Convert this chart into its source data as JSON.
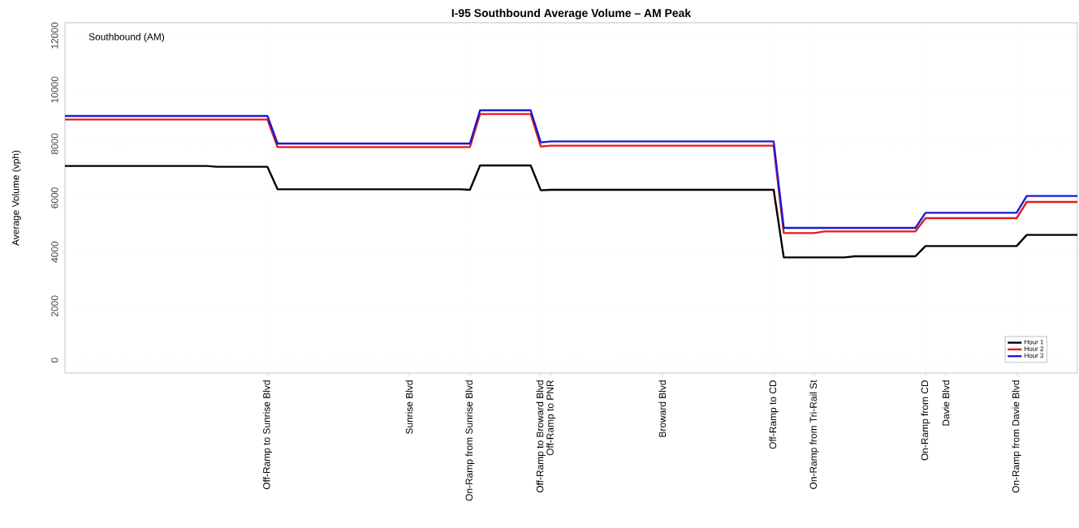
{
  "chart_data": {
    "type": "line",
    "title": "I-95 Southbound Average Volume – AM Peak",
    "ylabel": "Average Volume (vph)",
    "annotations": [
      "Southbound (AM)"
    ],
    "categories": [
      null,
      null,
      null,
      null,
      null,
      null,
      null,
      null,
      null,
      null,
      null,
      null,
      null,
      null,
      null,
      null,
      null,
      null,
      null,
      null,
      "Off-Ramp to Sunrise Blvd",
      null,
      null,
      null,
      null,
      null,
      null,
      null,
      null,
      null,
      null,
      null,
      null,
      null,
      "Sunrise Blvd",
      null,
      null,
      null,
      null,
      null,
      "On-Ramp from Sunrise Blvd",
      null,
      null,
      null,
      null,
      null,
      null,
      "Off-Ramp to Broward Blvd",
      "Off-Ramp to PNR",
      null,
      null,
      null,
      null,
      null,
      null,
      null,
      null,
      null,
      null,
      "Broward Blvd",
      null,
      null,
      null,
      null,
      null,
      null,
      null,
      null,
      null,
      null,
      "Off-Ramp to CD",
      null,
      null,
      null,
      "On-Ramp from Tri-Rail St",
      null,
      null,
      null,
      null,
      null,
      null,
      null,
      null,
      null,
      null,
      "On-Ramp from CD",
      null,
      "Davie Blvd",
      null,
      null,
      null,
      null,
      null,
      null,
      "On-Ramp from Davie Blvd",
      null,
      null,
      null,
      null,
      null,
      null
    ],
    "ylim": [
      -480,
      12480
    ],
    "yticks": [
      0,
      2000,
      4000,
      6000,
      8000,
      10000,
      12000
    ],
    "grid": "y",
    "legend": "bottom right",
    "marker": "none",
    "line_style": "solid",
    "ref_lines": [
      {
        "axis": "x",
        "value": "Off-Ramp to Sunrise Blvd",
        "color": "#d3d3d3",
        "line_style": "dotted"
      },
      {
        "axis": "x",
        "value": "On-Ramp from Sunrise Blvd",
        "color": "#d3d3d3",
        "line_style": "dotted"
      },
      {
        "axis": "x",
        "value": "Off-Ramp to Broward Blvd",
        "color": "#d3d3d3",
        "line_style": "dotted"
      },
      {
        "axis": "x",
        "value": "Off-Ramp to CD",
        "color": "#d3d3d3",
        "line_style": "dotted"
      },
      {
        "axis": "x",
        "value": "On-Ramp from Tri-Rail St",
        "color": "#d3d3d3",
        "line_style": "dotted"
      },
      {
        "axis": "x",
        "value": "On-Ramp from CD",
        "color": "#d3d3d3",
        "line_style": "dotted"
      },
      {
        "axis": "x",
        "value": "On-Ramp from Davie Blvd",
        "color": "#d3d3d3",
        "line_style": "dotted"
      }
    ],
    "series": [
      {
        "name": "Hour 1",
        "color": "#000000",
        "values": [
          7180,
          7180,
          7180,
          7180,
          7180,
          7180,
          7180,
          7180,
          7180,
          7180,
          7180,
          7180,
          7180,
          7180,
          7180,
          7150,
          7150,
          7150,
          7150,
          7150,
          7150,
          6320,
          6320,
          6320,
          6320,
          6320,
          6320,
          6320,
          6320,
          6320,
          6320,
          6320,
          6320,
          6320,
          6320,
          6320,
          6320,
          6320,
          6320,
          6320,
          6300,
          7200,
          7200,
          7200,
          7200,
          7200,
          7200,
          6280,
          6300,
          6300,
          6300,
          6300,
          6300,
          6300,
          6300,
          6300,
          6300,
          6300,
          6300,
          6300,
          6300,
          6300,
          6300,
          6300,
          6300,
          6300,
          6300,
          6300,
          6300,
          6300,
          6300,
          3800,
          3800,
          3800,
          3800,
          3800,
          3800,
          3800,
          3840,
          3840,
          3840,
          3840,
          3840,
          3840,
          3840,
          4220,
          4220,
          4220,
          4220,
          4220,
          4220,
          4220,
          4220,
          4220,
          4220,
          4630,
          4630,
          4630,
          4630,
          4630,
          4630
        ]
      },
      {
        "name": "Hour 2",
        "color": "#e31a1c",
        "values": [
          8900,
          8900,
          8900,
          8900,
          8900,
          8900,
          8900,
          8900,
          8900,
          8900,
          8900,
          8900,
          8900,
          8900,
          8900,
          8900,
          8900,
          8900,
          8900,
          8900,
          8900,
          7880,
          7880,
          7880,
          7880,
          7880,
          7880,
          7880,
          7880,
          7880,
          7880,
          7880,
          7880,
          7880,
          7880,
          7880,
          7880,
          7880,
          7880,
          7880,
          7880,
          9100,
          9100,
          9100,
          9100,
          9100,
          9100,
          7900,
          7930,
          7930,
          7930,
          7930,
          7930,
          7930,
          7930,
          7930,
          7930,
          7930,
          7930,
          7930,
          7930,
          7930,
          7930,
          7930,
          7930,
          7930,
          7930,
          7930,
          7930,
          7930,
          7930,
          4700,
          4700,
          4700,
          4700,
          4760,
          4760,
          4760,
          4760,
          4760,
          4760,
          4760,
          4760,
          4760,
          4760,
          5250,
          5250,
          5250,
          5250,
          5250,
          5250,
          5250,
          5250,
          5250,
          5250,
          5850,
          5850,
          5850,
          5850,
          5850,
          5850
        ]
      },
      {
        "name": "Hour 3",
        "color": "#1a1ad0",
        "values": [
          9030,
          9030,
          9030,
          9030,
          9030,
          9030,
          9030,
          9030,
          9030,
          9030,
          9030,
          9030,
          9030,
          9030,
          9030,
          9030,
          9030,
          9030,
          9030,
          9030,
          9030,
          8010,
          8010,
          8010,
          8010,
          8010,
          8010,
          8010,
          8010,
          8010,
          8010,
          8010,
          8010,
          8010,
          8010,
          8010,
          8010,
          8010,
          8010,
          8010,
          8010,
          9240,
          9240,
          9240,
          9240,
          9240,
          9240,
          8050,
          8090,
          8090,
          8090,
          8090,
          8090,
          8090,
          8090,
          8090,
          8090,
          8090,
          8090,
          8090,
          8090,
          8090,
          8090,
          8090,
          8090,
          8090,
          8090,
          8090,
          8090,
          8090,
          8090,
          4890,
          4890,
          4890,
          4890,
          4890,
          4890,
          4890,
          4890,
          4890,
          4890,
          4890,
          4890,
          4890,
          4890,
          5450,
          5450,
          5450,
          5450,
          5450,
          5450,
          5450,
          5450,
          5450,
          5450,
          6070,
          6070,
          6070,
          6070,
          6070,
          6070
        ]
      }
    ]
  }
}
